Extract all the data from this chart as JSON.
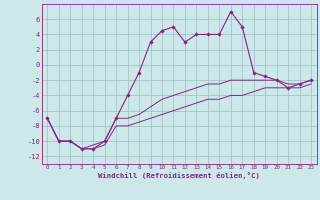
{
  "xlabel": "Windchill (Refroidissement éolien,°C)",
  "background_color": "#cce8e8",
  "grid_color": "#9bbfbf",
  "line_color": "#882288",
  "x_hours": [
    0,
    1,
    2,
    3,
    4,
    5,
    6,
    7,
    8,
    9,
    10,
    11,
    12,
    13,
    14,
    15,
    16,
    17,
    18,
    19,
    20,
    21,
    22,
    23
  ],
  "temp_line": [
    -7,
    -10,
    -10,
    -11,
    -11,
    -10,
    -7,
    -4,
    -1,
    3,
    4.5,
    5,
    3,
    4,
    4,
    4,
    7,
    5,
    -1,
    -1.5,
    -2,
    -3,
    -2.5,
    -2
  ],
  "line1": [
    -7,
    -10,
    -10,
    -11,
    -10.5,
    -10,
    -7,
    -7,
    -6.5,
    -5.5,
    -4.5,
    -4,
    -3.5,
    -3,
    -2.5,
    -2.5,
    -2,
    -2,
    -2,
    -2,
    -2,
    -2.5,
    -2.5,
    -2
  ],
  "line2": [
    -7,
    -10,
    -10,
    -11,
    -11,
    -10.5,
    -8,
    -8,
    -7.5,
    -7,
    -6.5,
    -6,
    -5.5,
    -5,
    -4.5,
    -4.5,
    -4,
    -4,
    -3.5,
    -3,
    -3,
    -3,
    -3,
    -2.5
  ],
  "ylim": [
    -13,
    8
  ],
  "yticks": [
    -12,
    -10,
    -8,
    -6,
    -4,
    -2,
    0,
    2,
    4,
    6
  ],
  "xticks": [
    0,
    1,
    2,
    3,
    4,
    5,
    6,
    7,
    8,
    9,
    10,
    11,
    12,
    13,
    14,
    15,
    16,
    17,
    18,
    19,
    20,
    21,
    22,
    23
  ]
}
